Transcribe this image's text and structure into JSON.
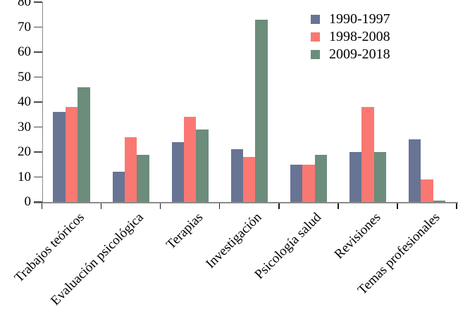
{
  "chart_data": {
    "type": "bar",
    "title": "",
    "xlabel": "",
    "ylabel": "",
    "categories": [
      "Trabajos teóricos",
      "Evaluación psicológica",
      "Terapias",
      "Investigación",
      "Psicología salud",
      "Revisiones",
      "Temas profesionales"
    ],
    "series": [
      {
        "name": "1990-1997",
        "color": "#687494",
        "values": [
          36,
          12,
          24,
          21,
          15,
          20,
          25
        ]
      },
      {
        "name": "1998-2008",
        "color": "#fa7872",
        "values": [
          38,
          26,
          34,
          18,
          15,
          38,
          9
        ]
      },
      {
        "name": "2009-2018",
        "color": "#6c8d7b",
        "values": [
          46,
          19,
          29,
          73,
          19,
          20,
          0.5
        ]
      }
    ],
    "ylim": [
      0,
      80
    ],
    "yticks": [
      0,
      10,
      20,
      30,
      40,
      50,
      60,
      70,
      80
    ],
    "grid": false,
    "legend_position": "top-right",
    "axis_color": "#8a8a8a",
    "tick_color": "#1a1a1a"
  }
}
